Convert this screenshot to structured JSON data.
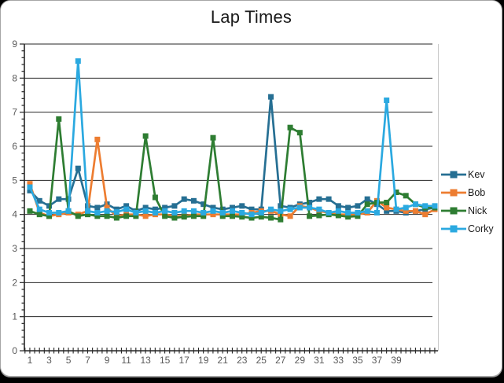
{
  "chart_data": {
    "type": "line",
    "title": "Lap Times",
    "marker": "square",
    "grid": "horizontal-major",
    "legend_position": "right",
    "ylim": [
      0,
      9
    ],
    "y_ticks": [
      0,
      1,
      2,
      3,
      4,
      5,
      6,
      7,
      8,
      9
    ],
    "x_tick_labels": [
      "1",
      "3",
      "5",
      "7",
      "9",
      "11",
      "13",
      "15",
      "17",
      "19",
      "21",
      "23",
      "25",
      "27",
      "29",
      "31",
      "33",
      "35",
      "37",
      "39"
    ],
    "x": [
      1,
      2,
      3,
      4,
      5,
      6,
      7,
      8,
      9,
      10,
      11,
      12,
      13,
      14,
      15,
      16,
      17,
      18,
      19,
      20,
      21,
      22,
      23,
      24,
      25,
      26,
      27,
      28,
      29,
      30,
      31,
      32,
      33,
      34,
      35,
      36,
      37,
      38,
      39,
      40,
      41,
      42,
      43
    ],
    "series": [
      {
        "name": "Kev",
        "color": "#266F93",
        "values": [
          4.7,
          4.4,
          4.25,
          4.45,
          4.45,
          5.35,
          4.25,
          4.2,
          4.3,
          4.15,
          4.25,
          4.1,
          4.2,
          4.15,
          4.2,
          4.25,
          4.45,
          4.4,
          4.3,
          4.2,
          4.15,
          4.2,
          4.25,
          4.15,
          4.15,
          7.45,
          4.25,
          4.2,
          4.3,
          4.35,
          4.45,
          4.45,
          4.25,
          4.2,
          4.25,
          4.45,
          4.3,
          4.1,
          4.1,
          4.05,
          4.1,
          4.15,
          4.2
        ]
      },
      {
        "name": "Bob",
        "color": "#ED7D31",
        "values": [
          4.9,
          4.05,
          3.95,
          4.0,
          4.05,
          4.0,
          4.1,
          6.2,
          4.2,
          3.95,
          4.0,
          4.0,
          3.95,
          4.0,
          4.0,
          3.95,
          3.95,
          4.0,
          4.0,
          4.0,
          4.0,
          4.0,
          4.0,
          4.05,
          4.1,
          4.1,
          4.0,
          3.95,
          4.25,
          4.2,
          4.1,
          4.05,
          4.0,
          4.0,
          4.0,
          4.05,
          4.4,
          4.2,
          4.15,
          4.1,
          4.1,
          4.0,
          4.15
        ]
      },
      {
        "name": "Nick",
        "color": "#2E7D32",
        "values": [
          4.1,
          4.0,
          3.95,
          6.8,
          4.1,
          3.95,
          4.0,
          3.95,
          3.95,
          3.9,
          3.95,
          3.95,
          6.3,
          4.5,
          3.95,
          3.9,
          3.93,
          3.95,
          3.95,
          6.25,
          3.95,
          3.95,
          3.93,
          3.9,
          3.93,
          3.9,
          3.85,
          6.55,
          6.4,
          3.95,
          3.97,
          4.0,
          3.97,
          3.93,
          3.95,
          4.3,
          4.35,
          4.35,
          4.65,
          4.55,
          4.3,
          4.2,
          4.2
        ]
      },
      {
        "name": "Corky",
        "color": "#2BA9E0",
        "values": [
          4.8,
          4.15,
          4.05,
          4.05,
          4.1,
          8.5,
          4.1,
          4.05,
          4.1,
          4.07,
          4.15,
          4.05,
          4.1,
          4.05,
          4.1,
          4.05,
          4.1,
          4.1,
          4.05,
          4.1,
          4.05,
          4.1,
          4.05,
          4.0,
          4.05,
          4.15,
          4.1,
          4.15,
          4.2,
          4.2,
          4.15,
          4.05,
          4.1,
          4.05,
          4.05,
          4.1,
          4.05,
          7.35,
          4.15,
          4.2,
          4.3,
          4.25,
          4.25
        ]
      }
    ],
    "colors": {
      "gridline": "#262626",
      "axis": "#262626",
      "tick_label": "#595959",
      "plot_right_border": "#c9c9c9"
    }
  }
}
